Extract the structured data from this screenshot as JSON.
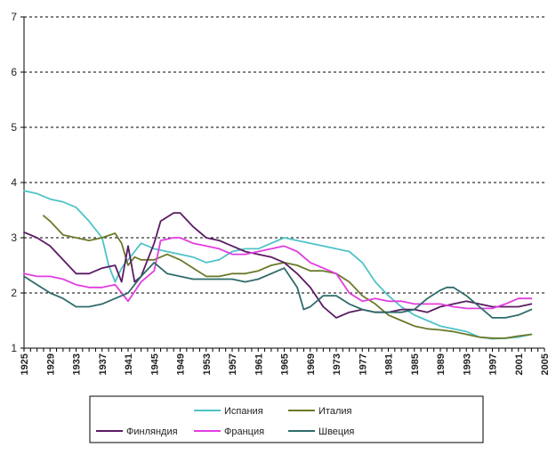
{
  "chart_data": {
    "type": "line",
    "title": "",
    "xlabel": "",
    "ylabel": "",
    "xlim": [
      1925,
      2005
    ],
    "ylim": [
      1,
      7
    ],
    "y_ticks": [
      1,
      2,
      3,
      4,
      5,
      6,
      7
    ],
    "x_ticks": [
      1925,
      1929,
      1933,
      1937,
      1941,
      1945,
      1949,
      1953,
      1957,
      1961,
      1965,
      1969,
      1973,
      1977,
      1981,
      1985,
      1989,
      1993,
      1997,
      2001,
      2005
    ],
    "grid": "horizontal dashed",
    "legend_position": "bottom",
    "colors": {
      "Испания": "#4fc3c8",
      "Италия": "#6b7a2a",
      "Финляндия": "#5a1b63",
      "Франция": "#e23de0",
      "Швеция": "#2e6b6a"
    },
    "series": [
      {
        "name": "Испания",
        "points": [
          [
            1925,
            3.85
          ],
          [
            1927,
            3.8
          ],
          [
            1929,
            3.7
          ],
          [
            1931,
            3.65
          ],
          [
            1933,
            3.55
          ],
          [
            1935,
            3.3
          ],
          [
            1937,
            3.0
          ],
          [
            1938,
            2.5
          ],
          [
            1939,
            2.2
          ],
          [
            1940,
            2.45
          ],
          [
            1941,
            2.6
          ],
          [
            1943,
            2.9
          ],
          [
            1945,
            2.8
          ],
          [
            1947,
            2.75
          ],
          [
            1949,
            2.7
          ],
          [
            1951,
            2.65
          ],
          [
            1953,
            2.55
          ],
          [
            1955,
            2.6
          ],
          [
            1957,
            2.75
          ],
          [
            1959,
            2.8
          ],
          [
            1961,
            2.8
          ],
          [
            1963,
            2.9
          ],
          [
            1965,
            3.0
          ],
          [
            1967,
            2.95
          ],
          [
            1969,
            2.9
          ],
          [
            1971,
            2.85
          ],
          [
            1973,
            2.8
          ],
          [
            1975,
            2.75
          ],
          [
            1977,
            2.55
          ],
          [
            1979,
            2.2
          ],
          [
            1981,
            1.95
          ],
          [
            1983,
            1.75
          ],
          [
            1985,
            1.6
          ],
          [
            1987,
            1.5
          ],
          [
            1989,
            1.4
          ],
          [
            1991,
            1.35
          ],
          [
            1993,
            1.3
          ],
          [
            1995,
            1.2
          ],
          [
            1997,
            1.17
          ],
          [
            1999,
            1.18
          ],
          [
            2001,
            1.2
          ],
          [
            2003,
            1.25
          ]
        ]
      },
      {
        "name": "Италия",
        "points": [
          [
            1928,
            3.4
          ],
          [
            1929,
            3.3
          ],
          [
            1931,
            3.05
          ],
          [
            1933,
            3.0
          ],
          [
            1935,
            2.95
          ],
          [
            1937,
            3.0
          ],
          [
            1939,
            3.08
          ],
          [
            1940,
            2.9
          ],
          [
            1941,
            2.5
          ],
          [
            1942,
            2.65
          ],
          [
            1943,
            2.6
          ],
          [
            1945,
            2.6
          ],
          [
            1947,
            2.7
          ],
          [
            1949,
            2.6
          ],
          [
            1951,
            2.45
          ],
          [
            1953,
            2.3
          ],
          [
            1955,
            2.3
          ],
          [
            1957,
            2.35
          ],
          [
            1959,
            2.35
          ],
          [
            1961,
            2.4
          ],
          [
            1963,
            2.5
          ],
          [
            1965,
            2.55
          ],
          [
            1967,
            2.5
          ],
          [
            1969,
            2.4
          ],
          [
            1971,
            2.4
          ],
          [
            1973,
            2.35
          ],
          [
            1975,
            2.2
          ],
          [
            1977,
            1.95
          ],
          [
            1979,
            1.8
          ],
          [
            1981,
            1.6
          ],
          [
            1983,
            1.5
          ],
          [
            1985,
            1.4
          ],
          [
            1987,
            1.35
          ],
          [
            1989,
            1.33
          ],
          [
            1991,
            1.3
          ],
          [
            1993,
            1.25
          ],
          [
            1995,
            1.2
          ],
          [
            1997,
            1.18
          ],
          [
            1999,
            1.18
          ],
          [
            2001,
            1.22
          ],
          [
            2003,
            1.25
          ]
        ]
      },
      {
        "name": "Финляндия",
        "points": [
          [
            1925,
            3.1
          ],
          [
            1927,
            3.0
          ],
          [
            1929,
            2.85
          ],
          [
            1931,
            2.6
          ],
          [
            1933,
            2.35
          ],
          [
            1935,
            2.35
          ],
          [
            1937,
            2.45
          ],
          [
            1939,
            2.5
          ],
          [
            1940,
            2.2
          ],
          [
            1941,
            2.85
          ],
          [
            1942,
            2.2
          ],
          [
            1943,
            2.3
          ],
          [
            1945,
            2.9
          ],
          [
            1946,
            3.3
          ],
          [
            1948,
            3.45
          ],
          [
            1949,
            3.45
          ],
          [
            1951,
            3.2
          ],
          [
            1953,
            3.0
          ],
          [
            1955,
            2.95
          ],
          [
            1957,
            2.85
          ],
          [
            1959,
            2.75
          ],
          [
            1961,
            2.7
          ],
          [
            1963,
            2.65
          ],
          [
            1965,
            2.55
          ],
          [
            1967,
            2.35
          ],
          [
            1969,
            2.1
          ],
          [
            1971,
            1.75
          ],
          [
            1973,
            1.55
          ],
          [
            1975,
            1.65
          ],
          [
            1977,
            1.7
          ],
          [
            1979,
            1.65
          ],
          [
            1981,
            1.65
          ],
          [
            1983,
            1.7
          ],
          [
            1985,
            1.7
          ],
          [
            1987,
            1.65
          ],
          [
            1989,
            1.75
          ],
          [
            1991,
            1.8
          ],
          [
            1993,
            1.85
          ],
          [
            1995,
            1.8
          ],
          [
            1997,
            1.75
          ],
          [
            1999,
            1.75
          ],
          [
            2001,
            1.75
          ],
          [
            2003,
            1.8
          ]
        ]
      },
      {
        "name": "Франция",
        "points": [
          [
            1925,
            2.35
          ],
          [
            1927,
            2.3
          ],
          [
            1929,
            2.3
          ],
          [
            1931,
            2.25
          ],
          [
            1933,
            2.15
          ],
          [
            1935,
            2.1
          ],
          [
            1937,
            2.1
          ],
          [
            1939,
            2.15
          ],
          [
            1941,
            1.85
          ],
          [
            1943,
            2.2
          ],
          [
            1945,
            2.4
          ],
          [
            1946,
            2.95
          ],
          [
            1948,
            3.0
          ],
          [
            1949,
            3.0
          ],
          [
            1951,
            2.9
          ],
          [
            1953,
            2.85
          ],
          [
            1955,
            2.8
          ],
          [
            1957,
            2.7
          ],
          [
            1959,
            2.7
          ],
          [
            1961,
            2.75
          ],
          [
            1963,
            2.8
          ],
          [
            1965,
            2.85
          ],
          [
            1967,
            2.75
          ],
          [
            1969,
            2.55
          ],
          [
            1971,
            2.45
          ],
          [
            1973,
            2.35
          ],
          [
            1975,
            2.0
          ],
          [
            1977,
            1.85
          ],
          [
            1979,
            1.9
          ],
          [
            1981,
            1.85
          ],
          [
            1983,
            1.85
          ],
          [
            1985,
            1.8
          ],
          [
            1987,
            1.8
          ],
          [
            1989,
            1.8
          ],
          [
            1991,
            1.75
          ],
          [
            1993,
            1.72
          ],
          [
            1995,
            1.72
          ],
          [
            1997,
            1.72
          ],
          [
            1999,
            1.8
          ],
          [
            2001,
            1.9
          ],
          [
            2003,
            1.9
          ]
        ]
      },
      {
        "name": "Швеция",
        "points": [
          [
            1925,
            2.3
          ],
          [
            1927,
            2.15
          ],
          [
            1929,
            2.0
          ],
          [
            1931,
            1.9
          ],
          [
            1933,
            1.75
          ],
          [
            1935,
            1.75
          ],
          [
            1937,
            1.8
          ],
          [
            1939,
            1.9
          ],
          [
            1941,
            2.0
          ],
          [
            1943,
            2.3
          ],
          [
            1945,
            2.55
          ],
          [
            1947,
            2.35
          ],
          [
            1949,
            2.3
          ],
          [
            1951,
            2.25
          ],
          [
            1953,
            2.25
          ],
          [
            1955,
            2.25
          ],
          [
            1957,
            2.25
          ],
          [
            1959,
            2.2
          ],
          [
            1961,
            2.25
          ],
          [
            1963,
            2.35
          ],
          [
            1965,
            2.45
          ],
          [
            1967,
            2.1
          ],
          [
            1968,
            1.7
          ],
          [
            1969,
            1.75
          ],
          [
            1971,
            1.95
          ],
          [
            1973,
            1.95
          ],
          [
            1975,
            1.8
          ],
          [
            1977,
            1.7
          ],
          [
            1979,
            1.65
          ],
          [
            1981,
            1.65
          ],
          [
            1983,
            1.65
          ],
          [
            1985,
            1.7
          ],
          [
            1987,
            1.9
          ],
          [
            1989,
            2.05
          ],
          [
            1990,
            2.1
          ],
          [
            1991,
            2.1
          ],
          [
            1993,
            1.95
          ],
          [
            1995,
            1.75
          ],
          [
            1997,
            1.55
          ],
          [
            1999,
            1.55
          ],
          [
            2001,
            1.6
          ],
          [
            2003,
            1.7
          ]
        ]
      }
    ]
  }
}
